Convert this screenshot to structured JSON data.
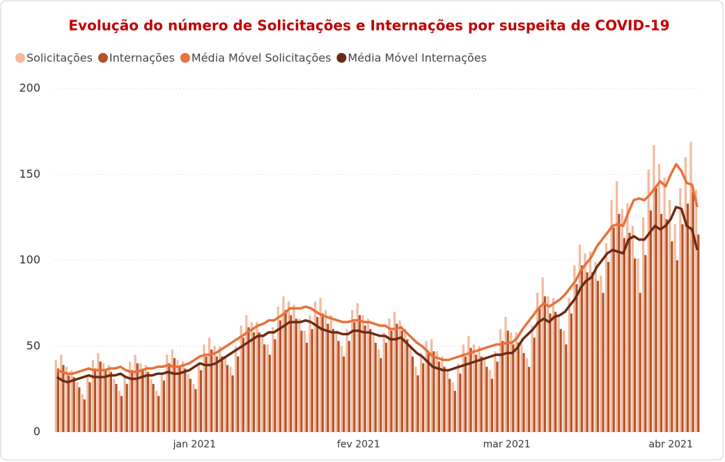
{
  "chart_data": {
    "type": "bar",
    "title": "Evolução do número de Solicitações e Internações por suspeita de COVID-19",
    "legend": "top-left",
    "grid": true,
    "categories": [
      null,
      null,
      null,
      null,
      null,
      null,
      null,
      null,
      null,
      null,
      null,
      null,
      null,
      null,
      null,
      null,
      null,
      null,
      null,
      null,
      null,
      null,
      null,
      null,
      null,
      null,
      "jan 2021",
      null,
      null,
      null,
      null,
      null,
      null,
      null,
      null,
      null,
      null,
      null,
      null,
      null,
      null,
      null,
      null,
      null,
      null,
      null,
      null,
      null,
      null,
      null,
      null,
      null,
      null,
      null,
      null,
      null,
      null,
      "fev 2021",
      null,
      null,
      null,
      null,
      null,
      null,
      null,
      null,
      null,
      null,
      null,
      null,
      null,
      null,
      null,
      null,
      null,
      null,
      null,
      null,
      null,
      null,
      null,
      null,
      null,
      null,
      null,
      "mar 2021",
      null,
      null,
      null,
      null,
      null,
      null,
      null,
      null,
      null,
      null,
      null,
      null,
      null,
      null,
      null,
      null,
      null,
      null,
      null,
      null,
      null,
      null,
      null,
      null,
      null,
      null,
      null,
      null,
      null,
      null,
      "abr 2021",
      null,
      null,
      null,
      null,
      null
    ],
    "ylim": [
      0,
      200
    ],
    "yticks": [
      0,
      50,
      100,
      150,
      200
    ],
    "series": [
      {
        "name": "Solicitações",
        "type": "bar",
        "color": "#f4b99c",
        "values": [
          42,
          45,
          38,
          36,
          29,
          22,
          33,
          42,
          46,
          40,
          39,
          31,
          24,
          32,
          41,
          45,
          40,
          39,
          31,
          24,
          34,
          45,
          48,
          42,
          41,
          34,
          28,
          40,
          51,
          55,
          50,
          50,
          44,
          38,
          50,
          62,
          68,
          64,
          64,
          57,
          51,
          61,
          73,
          79,
          76,
          74,
          66,
          59,
          68,
          76,
          78,
          71,
          68,
          59,
          50,
          60,
          71,
          75,
          68,
          66,
          57,
          48,
          58,
          66,
          70,
          65,
          60,
          49,
          38,
          46,
          53,
          54,
          47,
          44,
          36,
          29,
          40,
          51,
          56,
          51,
          50,
          43,
          36,
          47,
          60,
          67,
          58,
          58,
          51,
          43,
          62,
          81,
          90,
          79,
          78,
          68,
          59,
          78,
          97,
          109,
          104,
          105,
          99,
          91,
          110,
          135,
          146,
          130,
          133,
          120,
          101,
          125,
          153,
          167,
          156,
          148,
          135,
          121,
          142,
          160,
          169,
          141
        ]
      },
      {
        "name": "Internações",
        "type": "bar",
        "color": "#b4532a",
        "values": [
          37,
          39,
          33,
          32,
          26,
          19,
          29,
          37,
          41,
          36,
          35,
          28,
          21,
          28,
          36,
          40,
          36,
          35,
          28,
          21,
          30,
          40,
          43,
          38,
          37,
          31,
          25,
          36,
          44,
          48,
          44,
          44,
          39,
          33,
          44,
          55,
          61,
          58,
          58,
          51,
          45,
          54,
          65,
          71,
          68,
          66,
          59,
          52,
          60,
          67,
          69,
          63,
          60,
          53,
          44,
          53,
          64,
          68,
          62,
          60,
          52,
          43,
          52,
          59,
          63,
          59,
          54,
          44,
          33,
          40,
          46,
          47,
          41,
          38,
          31,
          24,
          34,
          44,
          49,
          45,
          44,
          38,
          31,
          41,
          53,
          59,
          51,
          52,
          46,
          38,
          55,
          72,
          79,
          69,
          70,
          60,
          51,
          69,
          86,
          97,
          93,
          93,
          88,
          81,
          99,
          119,
          127,
          113,
          116,
          101,
          81,
          103,
          129,
          142,
          127,
          124,
          111,
          100,
          121,
          133,
          140,
          115
        ]
      },
      {
        "name": "Média Móvel Solicitações",
        "type": "line",
        "color": "#e8703a",
        "values": [
          36,
          35,
          34,
          34,
          35,
          36,
          37,
          36,
          36,
          36,
          37,
          37,
          38,
          36,
          35,
          35,
          36,
          37,
          37,
          38,
          38,
          39,
          38,
          38,
          39,
          40,
          42,
          44,
          45,
          45,
          46,
          48,
          50,
          52,
          54,
          56,
          58,
          60,
          62,
          63,
          65,
          65,
          67,
          69,
          72,
          72,
          72,
          73,
          72,
          70,
          68,
          67,
          66,
          65,
          64,
          64,
          65,
          65,
          64,
          64,
          63,
          62,
          62,
          60,
          60,
          61,
          58,
          55,
          52,
          50,
          47,
          44,
          43,
          42,
          42,
          43,
          44,
          45,
          46,
          47,
          48,
          49,
          50,
          51,
          51,
          52,
          52,
          55,
          60,
          64,
          68,
          72,
          75,
          73,
          75,
          77,
          80,
          84,
          88,
          94,
          98,
          102,
          108,
          112,
          116,
          120,
          121,
          120,
          128,
          135,
          136,
          135,
          138,
          142,
          146,
          143,
          150,
          156,
          152,
          145,
          144,
          131
        ]
      },
      {
        "name": "Média Móvel Internações",
        "type": "line",
        "color": "#6b2b14",
        "values": [
          32,
          30,
          29,
          30,
          31,
          32,
          33,
          32,
          32,
          32,
          33,
          33,
          34,
          32,
          31,
          31,
          32,
          33,
          33,
          34,
          34,
          35,
          34,
          34,
          35,
          36,
          38,
          40,
          39,
          39,
          40,
          42,
          44,
          46,
          48,
          50,
          52,
          54,
          56,
          56,
          58,
          58,
          60,
          62,
          64,
          64,
          64,
          65,
          64,
          62,
          60,
          59,
          58,
          58,
          57,
          57,
          59,
          59,
          58,
          58,
          57,
          56,
          56,
          54,
          54,
          55,
          52,
          49,
          46,
          44,
          41,
          38,
          37,
          36,
          36,
          37,
          38,
          39,
          40,
          41,
          42,
          43,
          44,
          45,
          45,
          46,
          46,
          49,
          54,
          57,
          60,
          64,
          66,
          64,
          67,
          68,
          70,
          74,
          78,
          84,
          88,
          90,
          96,
          100,
          104,
          106,
          105,
          104,
          112,
          114,
          112,
          112,
          116,
          120,
          118,
          120,
          124,
          131,
          130,
          120,
          118,
          106
        ]
      }
    ]
  }
}
